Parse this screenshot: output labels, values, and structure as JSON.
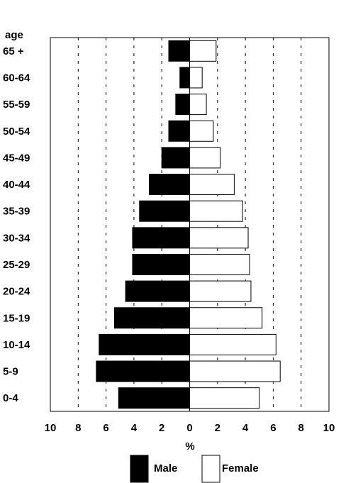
{
  "chart_data": {
    "type": "bar",
    "orientation": "horizontal",
    "subtype": "population-pyramid",
    "title": "",
    "ylabel": "age",
    "xlabel": "%",
    "xlim": [
      -10,
      10
    ],
    "xticks": [
      -10,
      -8,
      -6,
      -4,
      -2,
      0,
      2,
      4,
      6,
      8,
      10
    ],
    "xtick_labels": [
      "10",
      "8",
      "6",
      "4",
      "2",
      "0",
      "2",
      "4",
      "6",
      "8",
      "10"
    ],
    "grid": "vertical dashed",
    "legend_position": "bottom",
    "categories": [
      "65 +",
      "60-64",
      "55-59",
      "50-54",
      "45-49",
      "40-44",
      "35-39",
      "30-34",
      "25-29",
      "20-24",
      "15-19",
      "10-14",
      "5-9",
      "0-4"
    ],
    "series": [
      {
        "name": "Male",
        "color": "#000000",
        "values": [
          1.5,
          0.7,
          1.0,
          1.5,
          2.0,
          2.9,
          3.6,
          4.1,
          4.1,
          4.6,
          5.4,
          6.5,
          6.7,
          5.1
        ]
      },
      {
        "name": "Female",
        "color": "#ffffff",
        "values": [
          1.9,
          0.9,
          1.2,
          1.7,
          2.2,
          3.2,
          3.8,
          4.2,
          4.3,
          4.4,
          5.2,
          6.2,
          6.5,
          5.0
        ]
      }
    ]
  }
}
